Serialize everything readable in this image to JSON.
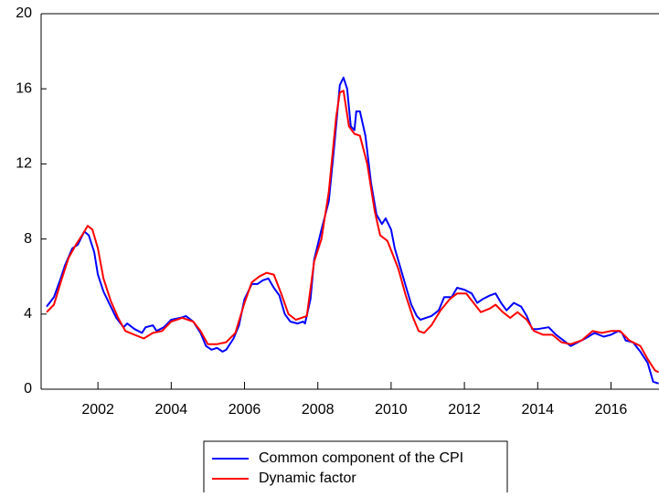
{
  "chart_data": {
    "type": "line",
    "xlim": [
      2000.45,
      2017.31
    ],
    "ylim": [
      0,
      20
    ],
    "xticks": [
      2002,
      2004,
      2006,
      2008,
      2010,
      2012,
      2014,
      2016
    ],
    "yticks": [
      0,
      4,
      8,
      12,
      16,
      20
    ],
    "legend": "bottom",
    "series": [
      {
        "name": "Common component of the CPI",
        "color": "#0000ff",
        "x": [
          2000.6,
          2000.8,
          2001.0,
          2001.1,
          2001.3,
          2001.45,
          2001.63,
          2001.75,
          2001.9,
          2002.0,
          2002.15,
          2002.3,
          2002.5,
          2002.7,
          2002.8,
          2003.0,
          2003.2,
          2003.3,
          2003.5,
          2003.6,
          2003.8,
          2004.0,
          2004.25,
          2004.4,
          2004.6,
          2004.8,
          2004.95,
          2005.1,
          2005.25,
          2005.4,
          2005.5,
          2005.7,
          2005.85,
          2006.0,
          2006.2,
          2006.35,
          2006.5,
          2006.65,
          2006.8,
          2006.95,
          2007.1,
          2007.25,
          2007.45,
          2007.6,
          2007.65,
          2007.8,
          2007.9,
          2008.1,
          2008.3,
          2008.45,
          2008.6,
          2008.7,
          2008.8,
          2008.9,
          2009.0,
          2009.05,
          2009.15,
          2009.3,
          2009.45,
          2009.6,
          2009.75,
          2009.85,
          2010.0,
          2010.1,
          2010.25,
          2010.4,
          2010.55,
          2010.7,
          2010.8,
          2010.95,
          2011.1,
          2011.3,
          2011.45,
          2011.65,
          2011.8,
          2012.0,
          2012.2,
          2012.35,
          2012.5,
          2012.7,
          2012.85,
          2013.0,
          2013.15,
          2013.35,
          2013.55,
          2013.7,
          2013.85,
          2014.0,
          2014.3,
          2014.5,
          2014.7,
          2014.9,
          2015.1,
          2015.3,
          2015.55,
          2015.8,
          2016.0,
          2016.2,
          2016.3,
          2016.4,
          2016.6,
          2016.8,
          2017.0,
          2017.15,
          2017.3
        ],
        "values": [
          4.4,
          4.9,
          6.0,
          6.6,
          7.5,
          7.7,
          8.4,
          8.2,
          7.3,
          6.1,
          5.2,
          4.6,
          3.8,
          3.3,
          3.5,
          3.2,
          3.0,
          3.3,
          3.4,
          3.1,
          3.3,
          3.7,
          3.8,
          3.9,
          3.6,
          3.0,
          2.3,
          2.1,
          2.2,
          2.0,
          2.1,
          2.7,
          3.4,
          4.8,
          5.6,
          5.6,
          5.8,
          5.9,
          5.4,
          5.0,
          4.0,
          3.6,
          3.5,
          3.6,
          3.5,
          4.8,
          6.9,
          8.5,
          10.0,
          13.0,
          16.2,
          16.6,
          16.0,
          14.0,
          13.8,
          14.8,
          14.8,
          13.5,
          11.0,
          9.3,
          8.8,
          9.1,
          8.5,
          7.5,
          6.5,
          5.5,
          4.5,
          3.9,
          3.7,
          3.8,
          3.9,
          4.2,
          4.9,
          4.9,
          5.4,
          5.3,
          5.1,
          4.6,
          4.8,
          5.0,
          5.1,
          4.6,
          4.2,
          4.6,
          4.4,
          3.9,
          3.2,
          3.2,
          3.3,
          2.9,
          2.6,
          2.3,
          2.5,
          2.7,
          3.0,
          2.8,
          2.9,
          3.1,
          3.0,
          2.6,
          2.5,
          2.0,
          1.4,
          0.4,
          0.3
        ]
      },
      {
        "name": "Dynamic factor",
        "color": "#ff0000",
        "x": [
          2000.6,
          2000.8,
          2001.0,
          2001.2,
          2001.4,
          2001.6,
          2001.72,
          2001.85,
          2002.0,
          2002.15,
          2002.35,
          2002.55,
          2002.75,
          2003.0,
          2003.25,
          2003.5,
          2003.75,
          2004.0,
          2004.3,
          2004.6,
          2004.8,
          2005.0,
          2005.25,
          2005.5,
          2005.75,
          2006.0,
          2006.2,
          2006.4,
          2006.6,
          2006.8,
          2007.0,
          2007.2,
          2007.4,
          2007.7,
          2007.9,
          2008.1,
          2008.3,
          2008.5,
          2008.6,
          2008.7,
          2008.85,
          2009.0,
          2009.15,
          2009.35,
          2009.55,
          2009.7,
          2009.9,
          2010.0,
          2010.2,
          2010.4,
          2010.6,
          2010.75,
          2010.9,
          2011.1,
          2011.35,
          2011.6,
          2011.8,
          2012.05,
          2012.25,
          2012.45,
          2012.7,
          2012.85,
          2013.05,
          2013.25,
          2013.45,
          2013.7,
          2013.9,
          2014.15,
          2014.4,
          2014.65,
          2014.9,
          2015.2,
          2015.5,
          2015.75,
          2016.0,
          2016.25,
          2016.5,
          2016.8,
          2017.0,
          2017.2,
          2017.3
        ],
        "values": [
          4.1,
          4.5,
          5.8,
          7.0,
          7.7,
          8.3,
          8.7,
          8.5,
          7.5,
          5.9,
          4.7,
          3.8,
          3.1,
          2.9,
          2.7,
          3.0,
          3.1,
          3.6,
          3.8,
          3.6,
          3.1,
          2.4,
          2.4,
          2.5,
          3.0,
          4.6,
          5.7,
          6.0,
          6.2,
          6.1,
          5.1,
          4.0,
          3.7,
          3.9,
          6.8,
          8.0,
          10.5,
          14.5,
          15.8,
          15.9,
          14.0,
          13.6,
          13.5,
          12.0,
          9.5,
          8.2,
          7.9,
          7.4,
          6.4,
          5.0,
          3.8,
          3.1,
          3.0,
          3.4,
          4.2,
          4.8,
          5.1,
          5.1,
          4.6,
          4.1,
          4.3,
          4.5,
          4.1,
          3.8,
          4.1,
          3.7,
          3.1,
          2.9,
          2.9,
          2.5,
          2.4,
          2.6,
          3.1,
          3.0,
          3.1,
          3.1,
          2.6,
          2.3,
          1.6,
          1.0,
          0.9
        ]
      }
    ]
  }
}
